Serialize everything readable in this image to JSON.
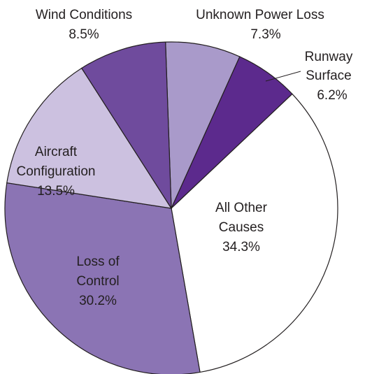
{
  "chart_data": {
    "type": "pie",
    "categories": [
      "Unknown Power Loss",
      "Runway Surface",
      "All Other Causes",
      "Loss of Control",
      "Aircraft Configuration",
      "Wind Conditions"
    ],
    "values": [
      7.3,
      6.2,
      34.3,
      30.2,
      13.5,
      8.5
    ],
    "value_labels": [
      "7.3%",
      "6.2%",
      "34.3%",
      "30.2%",
      "13.5%",
      "8.5%"
    ],
    "colors": [
      "#a99aca",
      "#5c2a8d",
      "#ffffff",
      "#8b74b4",
      "#ccc1e0",
      "#6f4b9d"
    ]
  }
}
